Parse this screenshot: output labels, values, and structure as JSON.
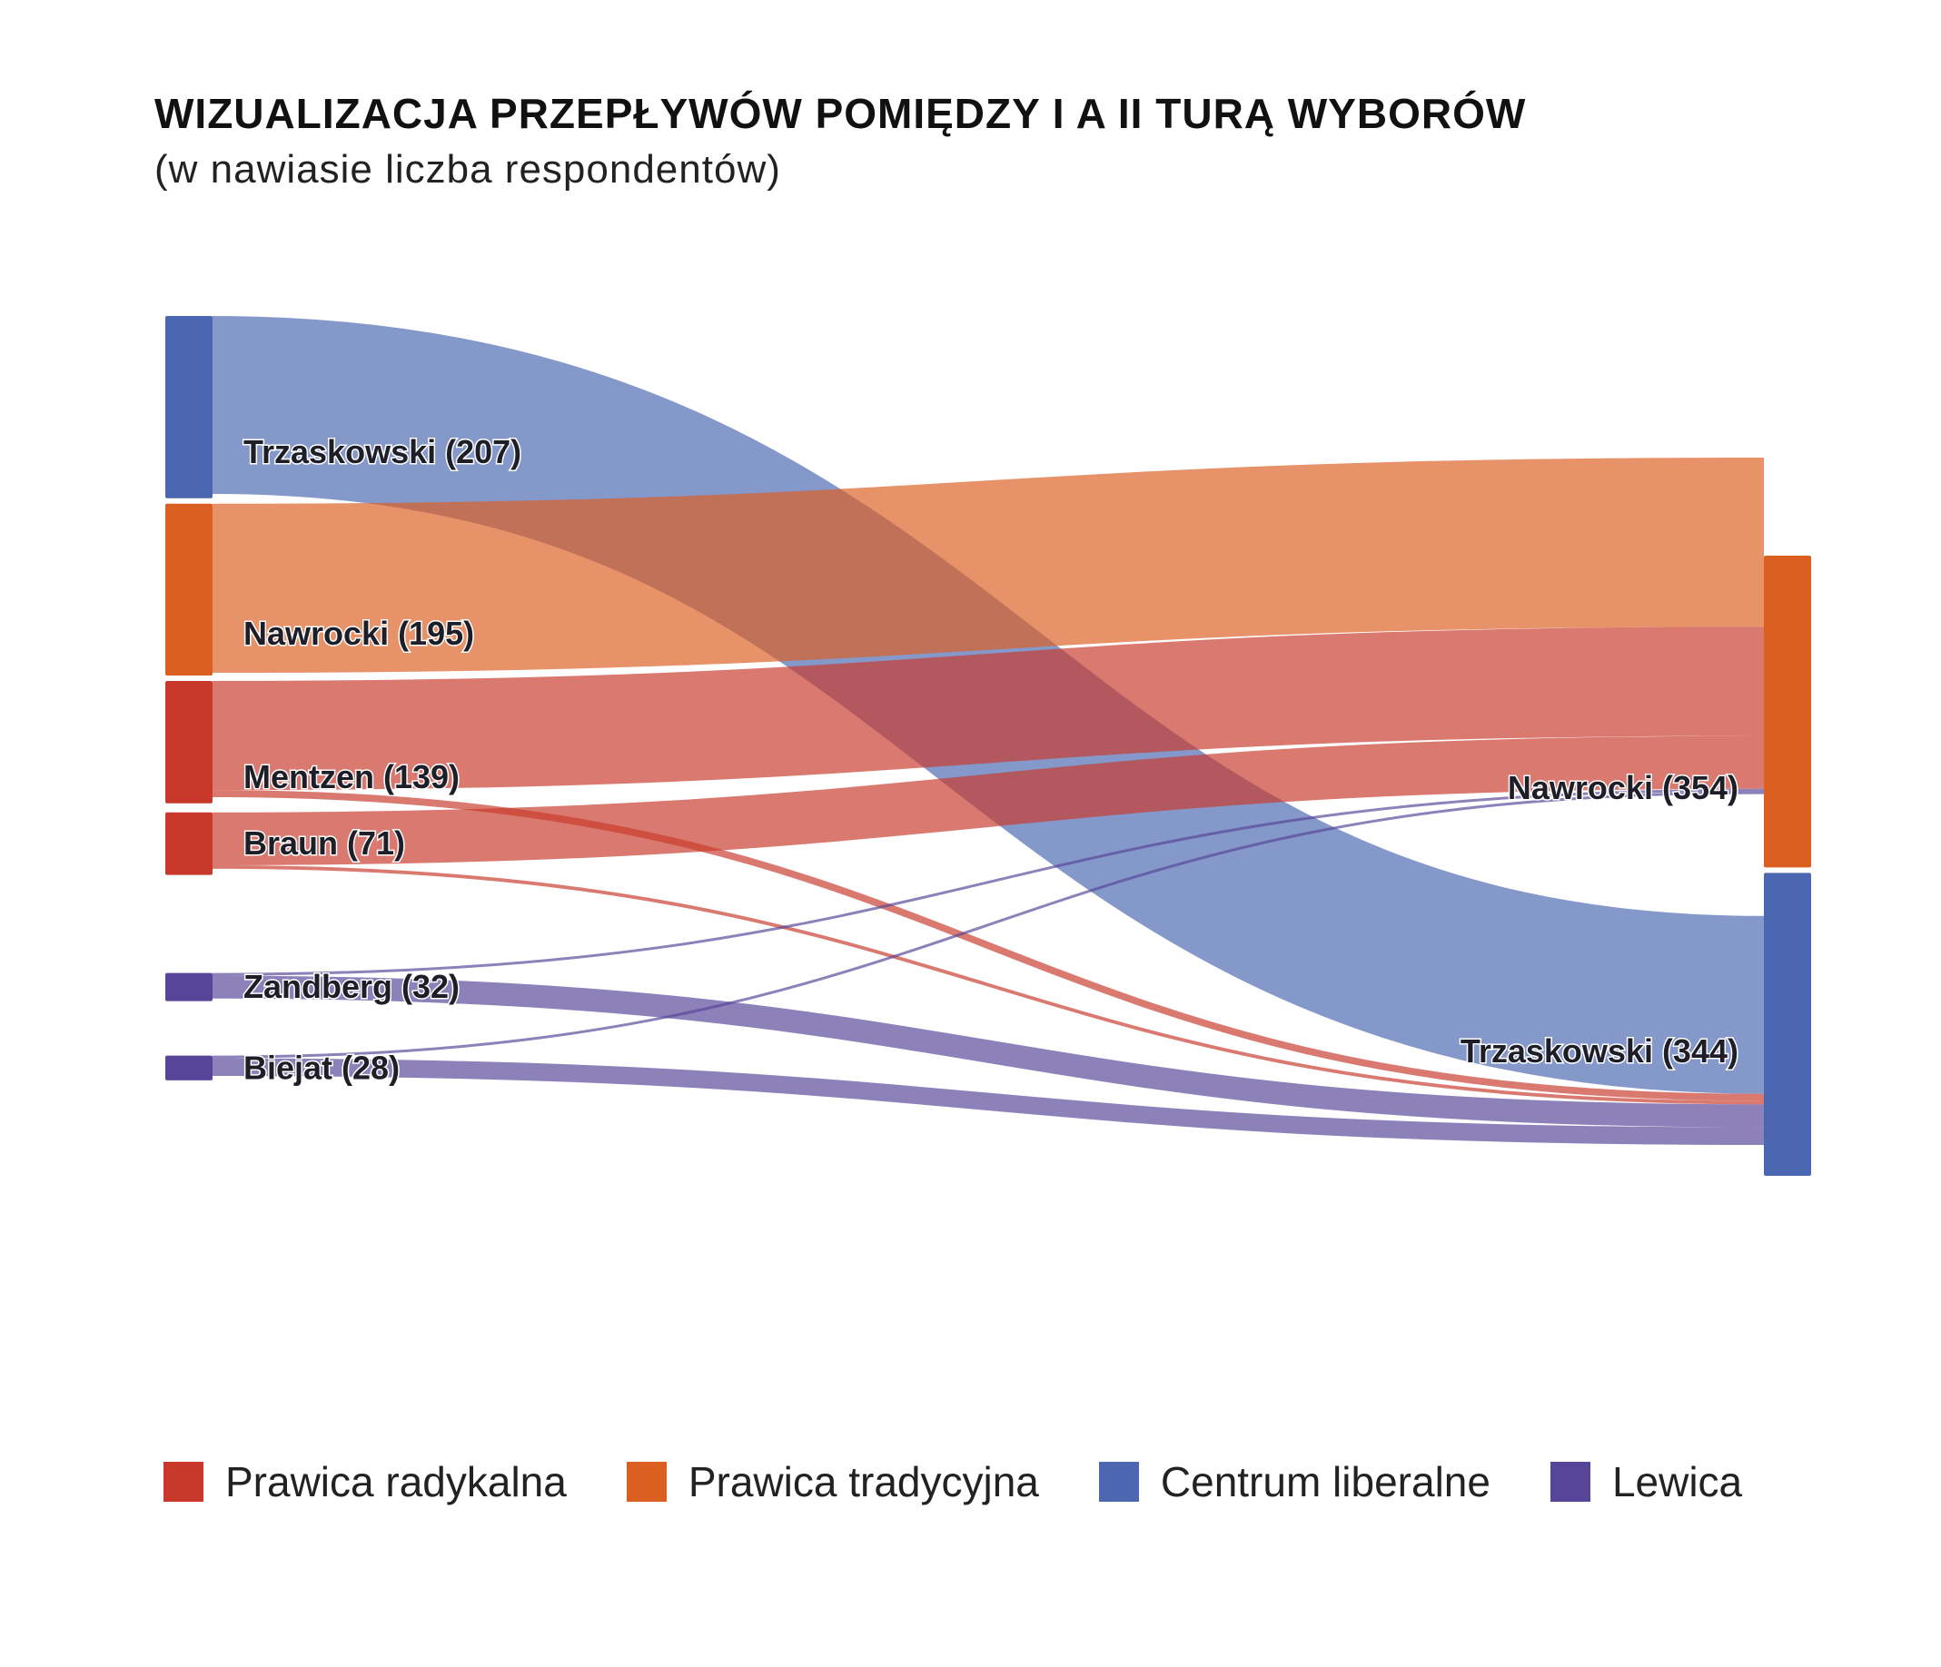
{
  "title": "WIZUALIZACJA PRZEPŁYWÓW POMIĘDZY I A II TURĄ WYBORÓW",
  "subtitle": "(w nawiasie liczba respondentów)",
  "colors": {
    "Prawica radykalna": "#c9392b",
    "Prawica tradycyjna": "#dc5f22",
    "Centrum liberalne": "#4b67b1",
    "Lewica": "#57459a"
  },
  "legend": [
    {
      "label": "Prawica radykalna",
      "group": "Prawica radykalna"
    },
    {
      "label": "Prawica tradycyjna",
      "group": "Prawica tradycyjna"
    },
    {
      "label": "Centrum liberalne",
      "group": "Centrum liberalne"
    },
    {
      "label": "Lewica",
      "group": "Lewica"
    }
  ],
  "chart_data": {
    "type": "sankey",
    "source_nodes": [
      {
        "id": "trz1",
        "label": "Trzaskowski (207)",
        "value": 207,
        "group": "Centrum liberalne"
      },
      {
        "id": "naw1",
        "label": "Nawrocki (195)",
        "value": 195,
        "group": "Prawica tradycyjna"
      },
      {
        "id": "men",
        "label": "Mentzen (139)",
        "value": 139,
        "group": "Prawica radykalna"
      },
      {
        "id": "bra",
        "label": "Braun (71)",
        "value": 71,
        "group": "Prawica radykalna"
      },
      {
        "id": "zan",
        "label": "Zandberg (32)",
        "value": 32,
        "group": "Lewica"
      },
      {
        "id": "bie",
        "label": "Biejat (28)",
        "value": 28,
        "group": "Lewica"
      }
    ],
    "target_nodes": [
      {
        "id": "naw2",
        "label": "Nawrocki (354)",
        "value": 354,
        "group": "Prawica tradycyjna"
      },
      {
        "id": "trz2",
        "label": "Trzaskowski (344)",
        "value": 344,
        "group": "Centrum liberalne"
      }
    ],
    "links": [
      {
        "source": "trz1",
        "target": "trz2",
        "value": 202
      },
      {
        "source": "naw1",
        "target": "naw2",
        "value": 192
      },
      {
        "source": "men",
        "target": "naw2",
        "value": 124
      },
      {
        "source": "men",
        "target": "trz2",
        "value": 8
      },
      {
        "source": "bra",
        "target": "naw2",
        "value": 60
      },
      {
        "source": "bra",
        "target": "trz2",
        "value": 4
      },
      {
        "source": "zan",
        "target": "naw2",
        "value": 3
      },
      {
        "source": "zan",
        "target": "trz2",
        "value": 26
      },
      {
        "source": "bie",
        "target": "naw2",
        "value": 3
      },
      {
        "source": "bie",
        "target": "trz2",
        "value": 20
      }
    ]
  }
}
